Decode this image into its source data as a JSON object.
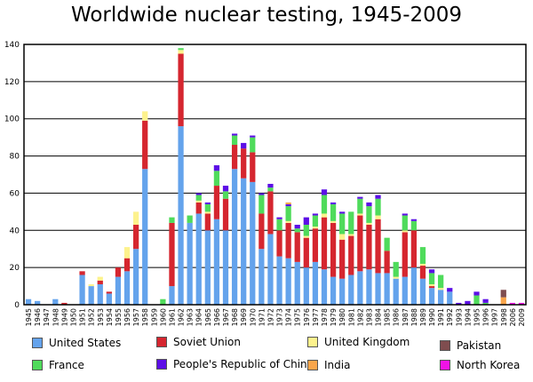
{
  "chart_data": {
    "type": "bar",
    "stacked": true,
    "title": "Worldwide nuclear testing, 1945-2009",
    "xlabel": "",
    "ylabel": "",
    "ylim": [
      0,
      140
    ],
    "yticks": [
      0,
      20,
      40,
      60,
      80,
      100,
      120,
      140
    ],
    "grid": "horizontal",
    "legend_placement": "bottom",
    "categories": [
      "1945",
      "1946",
      "1947",
      "1948",
      "1949",
      "1950",
      "1951",
      "1952",
      "1953",
      "1954",
      "1955",
      "1956",
      "1957",
      "1958",
      "1959",
      "1960",
      "1961",
      "1962",
      "1963",
      "1964",
      "1965",
      "1966",
      "1967",
      "1968",
      "1969",
      "1970",
      "1971",
      "1972",
      "1973",
      "1974",
      "1975",
      "1976",
      "1977",
      "1978",
      "1979",
      "1980",
      "1981",
      "1982",
      "1983",
      "1984",
      "1985",
      "1986",
      "1987",
      "1988",
      "1989",
      "1990",
      "1991",
      "1992",
      "1993",
      "1994",
      "1995",
      "1996",
      "1997",
      "1998",
      "2006",
      "2009"
    ],
    "series": [
      {
        "name": "United States",
        "color": "#64a3ec",
        "values": [
          3,
          2,
          0,
          3,
          0,
          0,
          16,
          10,
          11,
          6,
          15,
          18,
          30,
          73,
          0,
          0,
          10,
          96,
          44,
          49,
          40,
          46,
          40,
          73,
          68,
          66,
          30,
          38,
          26,
          25,
          23,
          20,
          23,
          19,
          15,
          14,
          16,
          18,
          19,
          17,
          17,
          14,
          15,
          20,
          14,
          9,
          8,
          7,
          0,
          0,
          0,
          0,
          0,
          0,
          0,
          0
        ]
      },
      {
        "name": "Soviet Union",
        "color": "#d5262f",
        "values": [
          0,
          0,
          0,
          0,
          1,
          0,
          2,
          0,
          2,
          1,
          5,
          7,
          13,
          26,
          0,
          0,
          34,
          39,
          0,
          6,
          9,
          18,
          17,
          13,
          16,
          16,
          19,
          23,
          14,
          19,
          16,
          16,
          18,
          28,
          29,
          21,
          21,
          30,
          24,
          29,
          12,
          0,
          24,
          20,
          7,
          1,
          0,
          0,
          0,
          0,
          0,
          0,
          0,
          0,
          0,
          0
        ]
      },
      {
        "name": "United Kingdom",
        "color": "#fdf28d",
        "values": [
          0,
          0,
          0,
          0,
          0,
          0,
          0,
          1,
          2,
          0,
          0,
          6,
          7,
          5,
          0,
          0,
          0,
          2,
          0,
          1,
          1,
          0,
          0,
          0,
          0,
          0,
          0,
          0,
          0,
          1,
          0,
          1,
          1,
          2,
          1,
          3,
          1,
          1,
          1,
          2,
          0,
          1,
          1,
          0,
          1,
          1,
          1,
          0,
          0,
          0,
          0,
          0,
          0,
          0,
          0,
          0
        ]
      },
      {
        "name": "France",
        "color": "#4fdb5b",
        "values": [
          0,
          0,
          0,
          0,
          0,
          0,
          0,
          0,
          0,
          0,
          0,
          0,
          0,
          0,
          0,
          3,
          3,
          1,
          4,
          3,
          4,
          8,
          4,
          5,
          0,
          8,
          10,
          2,
          6,
          8,
          2,
          6,
          6,
          10,
          9,
          11,
          12,
          8,
          9,
          9,
          7,
          8,
          8,
          5,
          9,
          6,
          7,
          0,
          0,
          0,
          5,
          1,
          0,
          0,
          0,
          0
        ]
      },
      {
        "name": "People's Republic of China",
        "color": "#5c0fe6",
        "values": [
          0,
          0,
          0,
          0,
          0,
          0,
          0,
          0,
          0,
          0,
          0,
          0,
          0,
          0,
          0,
          0,
          0,
          0,
          0,
          1,
          1,
          3,
          3,
          1,
          3,
          1,
          1,
          2,
          1,
          1,
          2,
          4,
          1,
          3,
          1,
          1,
          0,
          1,
          2,
          2,
          0,
          0,
          1,
          1,
          0,
          2,
          0,
          2,
          1,
          2,
          2,
          2,
          0,
          0,
          0,
          0
        ]
      },
      {
        "name": "India",
        "color": "#f9a54a",
        "values": [
          0,
          0,
          0,
          0,
          0,
          0,
          0,
          0,
          0,
          0,
          0,
          0,
          0,
          0,
          0,
          0,
          0,
          0,
          0,
          0,
          0,
          0,
          0,
          0,
          0,
          0,
          0,
          0,
          0,
          1,
          0,
          0,
          0,
          0,
          0,
          0,
          0,
          0,
          0,
          0,
          0,
          0,
          0,
          0,
          0,
          0,
          0,
          0,
          0,
          0,
          0,
          0,
          0,
          4,
          0,
          0
        ]
      },
      {
        "name": "Pakistan",
        "color": "#7f4d4f",
        "values": [
          0,
          0,
          0,
          0,
          0,
          0,
          0,
          0,
          0,
          0,
          0,
          0,
          0,
          0,
          0,
          0,
          0,
          0,
          0,
          0,
          0,
          0,
          0,
          0,
          0,
          0,
          0,
          0,
          0,
          0,
          0,
          0,
          0,
          0,
          0,
          0,
          0,
          0,
          0,
          0,
          0,
          0,
          0,
          0,
          0,
          0,
          0,
          0,
          0,
          0,
          0,
          0,
          0,
          4,
          0,
          0
        ]
      },
      {
        "name": "North Korea",
        "color": "#f012e6",
        "values": [
          0,
          0,
          0,
          0,
          0,
          0,
          0,
          0,
          0,
          0,
          0,
          0,
          0,
          0,
          0,
          0,
          0,
          0,
          0,
          0,
          0,
          0,
          0,
          0,
          0,
          0,
          0,
          0,
          0,
          0,
          0,
          0,
          0,
          0,
          0,
          0,
          0,
          0,
          0,
          0,
          0,
          0,
          0,
          0,
          0,
          0,
          0,
          0,
          0,
          0,
          0,
          0,
          0,
          0,
          1,
          1
        ]
      }
    ]
  }
}
